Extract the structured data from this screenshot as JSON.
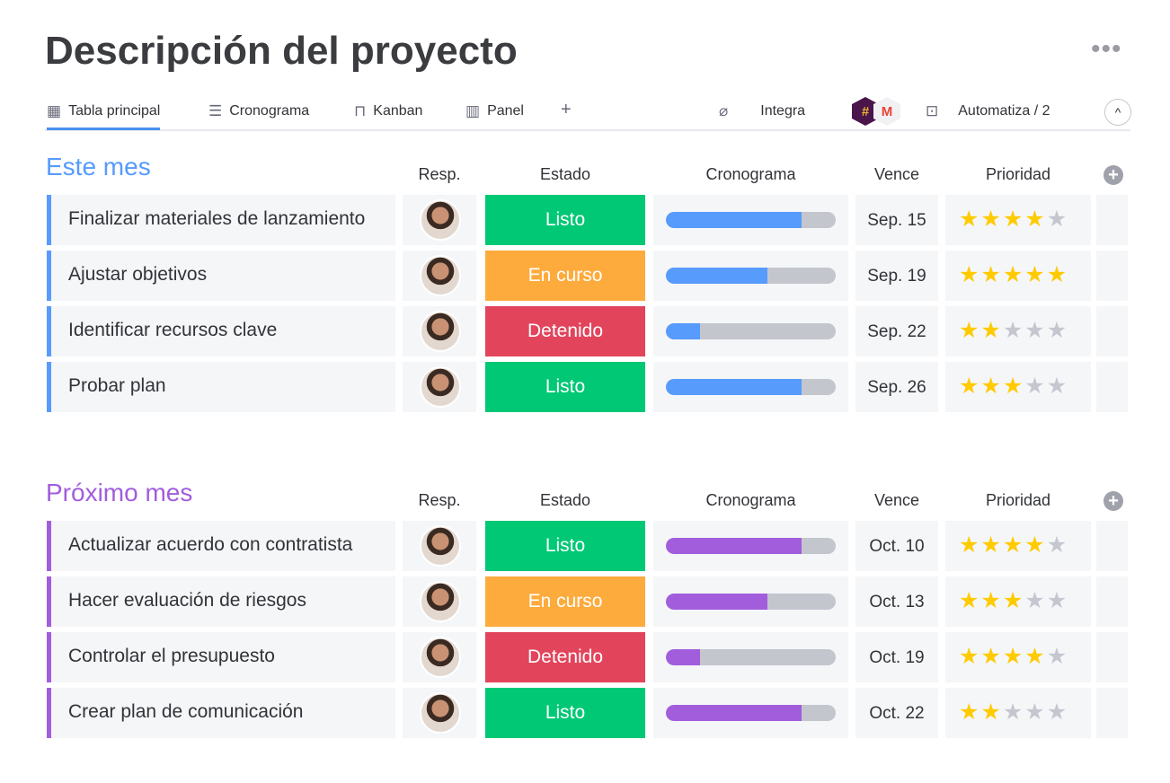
{
  "title": "Descripción del proyecto",
  "more_label": "•••",
  "tabs": [
    {
      "label": "Tabla principal",
      "icon": "table-icon"
    },
    {
      "label": "Cronograma",
      "icon": "timeline-icon"
    },
    {
      "label": "Kanban",
      "icon": "kanban-icon"
    },
    {
      "label": "Panel",
      "icon": "chart-icon"
    }
  ],
  "add_tab": "+",
  "toolbar": {
    "integrate": "Integra",
    "automate": "Automatiza / 2",
    "collapse": "^"
  },
  "columns": {
    "resp": "Resp.",
    "estado": "Estado",
    "crono": "Cronograma",
    "vence": "Vence",
    "prioridad": "Prioridad"
  },
  "colors": {
    "listo": "#00c875",
    "en_curso": "#fdab3d",
    "detenido": "#e2445c",
    "blue": "#579bfc",
    "purple": "#a25ddc"
  },
  "groups": [
    {
      "title": "Este mes",
      "color": "#579bfc",
      "rows": [
        {
          "name": "Finalizar materiales de lanzamiento",
          "status": "Listo",
          "progress": 0.8,
          "due": "Sep. 15",
          "stars": 4
        },
        {
          "name": "Ajustar objetivos",
          "status": "En curso",
          "progress": 0.6,
          "due": "Sep. 19",
          "stars": 5
        },
        {
          "name": "Identificar recursos clave",
          "status": "Detenido",
          "progress": 0.2,
          "due": "Sep. 22",
          "stars": 2
        },
        {
          "name": "Probar plan",
          "status": "Listo",
          "progress": 0.8,
          "due": "Sep. 26",
          "stars": 3
        }
      ]
    },
    {
      "title": "Próximo mes",
      "color": "#a25ddc",
      "rows": [
        {
          "name": "Actualizar acuerdo con contratista",
          "status": "Listo",
          "progress": 0.8,
          "due": "Oct. 10",
          "stars": 4
        },
        {
          "name": "Hacer evaluación de riesgos",
          "status": "En curso",
          "progress": 0.6,
          "due": "Oct. 13",
          "stars": 3
        },
        {
          "name": "Controlar el presupuesto",
          "status": "Detenido",
          "progress": 0.2,
          "due": "Oct. 19",
          "stars": 4
        },
        {
          "name": "Crear plan de comunicación",
          "status": "Listo",
          "progress": 0.8,
          "due": "Oct. 22",
          "stars": 2
        }
      ]
    }
  ]
}
